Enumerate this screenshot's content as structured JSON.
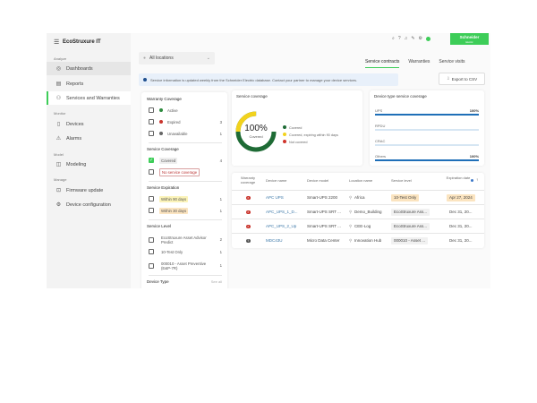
{
  "app": {
    "logo": "EcoStruxure IT",
    "brand": "Schneider Electric",
    "brand_color": "#3dcd58"
  },
  "topbar": {
    "icons": [
      "search-icon",
      "help-icon",
      "bell-icon",
      "feedback-icon",
      "gear-icon",
      "user-avatar"
    ]
  },
  "sidebar": {
    "sections": [
      {
        "label": "Analyze",
        "items": [
          {
            "label": "Dashboards",
            "icon": "eye-icon"
          },
          {
            "label": "Reports",
            "icon": "report-icon"
          },
          {
            "label": "Services and Warranties",
            "icon": "service-icon"
          }
        ]
      },
      {
        "label": "Monitor",
        "items": [
          {
            "label": "Devices",
            "icon": "device-icon"
          },
          {
            "label": "Alarms",
            "icon": "alarm-icon"
          }
        ]
      },
      {
        "label": "Model",
        "items": [
          {
            "label": "Modeling",
            "icon": "model-icon"
          }
        ]
      },
      {
        "label": "Manage",
        "items": [
          {
            "label": "Firmware update",
            "icon": "firmware-icon"
          },
          {
            "label": "Device configuration",
            "icon": "config-icon"
          }
        ]
      }
    ]
  },
  "location": {
    "value": "All locations"
  },
  "tabs": [
    {
      "label": "Service contracts",
      "active": true
    },
    {
      "label": "Warranties"
    },
    {
      "label": "Service visits"
    }
  ],
  "banner": "Service information is updated weekly from the Schneider Electric database. Contact your partner to manage your device services.",
  "export_label": "Export to CSV",
  "filters": {
    "warranty": {
      "title": "Warranty Coverage",
      "items": [
        {
          "label": "Active",
          "count": ""
        },
        {
          "label": "Expired",
          "count": "3"
        },
        {
          "label": "Unavailable",
          "count": "1"
        }
      ]
    },
    "coverage": {
      "title": "Service Coverage",
      "items": [
        {
          "label": "Covered",
          "count": "4",
          "checked": true
        },
        {
          "label": "No service coverage",
          "count": ""
        }
      ]
    },
    "expiration": {
      "title": "Service Expiration",
      "items": [
        {
          "label": "Within 90 days",
          "count": "1"
        },
        {
          "label": "Within 30 days",
          "count": "1"
        }
      ]
    },
    "level": {
      "title": "Service Level",
      "items": [
        {
          "label": "EcoStruxure Asset Advisor Predict",
          "count": "2"
        },
        {
          "label": "10-Test Only",
          "count": "1"
        },
        {
          "label": "000010 - Asset Preventive (E&P-7R)",
          "count": "1"
        }
      ]
    },
    "device_type": {
      "title": "Device Type",
      "see_all": "See all"
    }
  },
  "coverage_card": {
    "title": "Service coverage",
    "percent": "100%",
    "sub": "Covered",
    "legend": [
      {
        "label": "Covered",
        "color": "#1e6b35"
      },
      {
        "label": "Covered, expiring within 90 days",
        "color": "#f2d21d"
      },
      {
        "label": "Not covered",
        "color": "#d0342c"
      }
    ],
    "covered_fraction": 0.75,
    "expiring_fraction": 0.25
  },
  "device_type_card": {
    "title": "Device type service coverage",
    "items": [
      {
        "label": "UPS",
        "value": "100%",
        "fill": 1
      },
      {
        "label": "RPDU",
        "value": "",
        "fill": 0
      },
      {
        "label": "CRAC",
        "value": "",
        "fill": 0
      },
      {
        "label": "Others",
        "value": "100%",
        "fill": 1
      }
    ]
  },
  "table": {
    "headers": [
      "Warranty coverage",
      "Device name",
      "Device model",
      "Location name",
      "Service level",
      "Expiration date"
    ],
    "rows": [
      {
        "status": "expired",
        "name": "APC UPS",
        "model": "Smart-UPS 2200",
        "location": "Africa",
        "level": "10-Test Only",
        "date": "Apr 27, 2024",
        "hl": true
      },
      {
        "status": "expired",
        "name": "APC_UPS_1_D...",
        "model": "Smart-UPS SRT ...",
        "location": "Demo_Building",
        "level": "EcoStruxure Ass...",
        "date": "Dec 31, 20..."
      },
      {
        "status": "expired",
        "name": "APC_UPS_2_Up",
        "model": "Smart-UPS SRT ...",
        "location": "CEE-Log",
        "level": "EcoStruxure Ass...",
        "date": "Dec 31, 20..."
      },
      {
        "status": "unavailable",
        "name": "MDC43U",
        "model": "Micro Data Center",
        "location": "Innovation Hub",
        "level": "000010 - Asset ...",
        "date": "Dec 31, 20..."
      }
    ]
  }
}
